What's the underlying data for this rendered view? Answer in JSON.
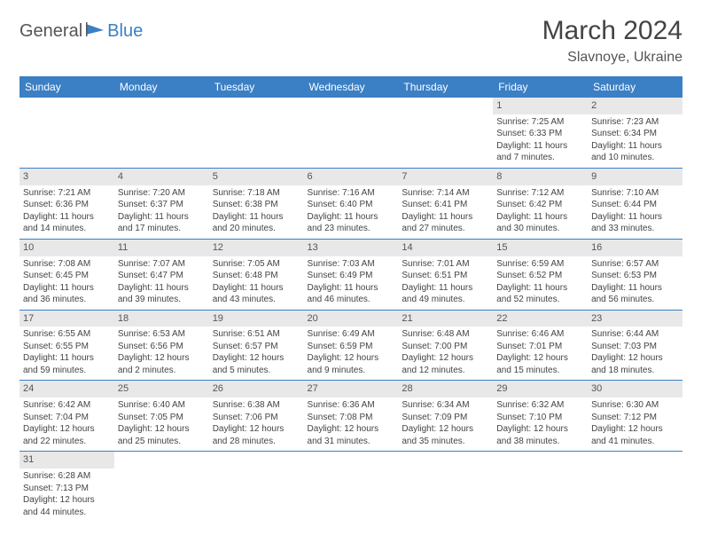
{
  "logo": {
    "part1": "General",
    "part2": "Blue"
  },
  "title": "March 2024",
  "location": "Slavnoye, Ukraine",
  "colors": {
    "header_bg": "#3b7fc4",
    "header_text": "#ffffff",
    "daynum_bg": "#e8e8e8",
    "border": "#3b7fc4",
    "logo_blue": "#3b7fc4"
  },
  "day_headers": [
    "Sunday",
    "Monday",
    "Tuesday",
    "Wednesday",
    "Thursday",
    "Friday",
    "Saturday"
  ],
  "weeks": [
    [
      {
        "n": "",
        "sr": "",
        "ss": "",
        "d1": "",
        "d2": ""
      },
      {
        "n": "",
        "sr": "",
        "ss": "",
        "d1": "",
        "d2": ""
      },
      {
        "n": "",
        "sr": "",
        "ss": "",
        "d1": "",
        "d2": ""
      },
      {
        "n": "",
        "sr": "",
        "ss": "",
        "d1": "",
        "d2": ""
      },
      {
        "n": "",
        "sr": "",
        "ss": "",
        "d1": "",
        "d2": ""
      },
      {
        "n": "1",
        "sr": "Sunrise: 7:25 AM",
        "ss": "Sunset: 6:33 PM",
        "d1": "Daylight: 11 hours",
        "d2": "and 7 minutes."
      },
      {
        "n": "2",
        "sr": "Sunrise: 7:23 AM",
        "ss": "Sunset: 6:34 PM",
        "d1": "Daylight: 11 hours",
        "d2": "and 10 minutes."
      }
    ],
    [
      {
        "n": "3",
        "sr": "Sunrise: 7:21 AM",
        "ss": "Sunset: 6:36 PM",
        "d1": "Daylight: 11 hours",
        "d2": "and 14 minutes."
      },
      {
        "n": "4",
        "sr": "Sunrise: 7:20 AM",
        "ss": "Sunset: 6:37 PM",
        "d1": "Daylight: 11 hours",
        "d2": "and 17 minutes."
      },
      {
        "n": "5",
        "sr": "Sunrise: 7:18 AM",
        "ss": "Sunset: 6:38 PM",
        "d1": "Daylight: 11 hours",
        "d2": "and 20 minutes."
      },
      {
        "n": "6",
        "sr": "Sunrise: 7:16 AM",
        "ss": "Sunset: 6:40 PM",
        "d1": "Daylight: 11 hours",
        "d2": "and 23 minutes."
      },
      {
        "n": "7",
        "sr": "Sunrise: 7:14 AM",
        "ss": "Sunset: 6:41 PM",
        "d1": "Daylight: 11 hours",
        "d2": "and 27 minutes."
      },
      {
        "n": "8",
        "sr": "Sunrise: 7:12 AM",
        "ss": "Sunset: 6:42 PM",
        "d1": "Daylight: 11 hours",
        "d2": "and 30 minutes."
      },
      {
        "n": "9",
        "sr": "Sunrise: 7:10 AM",
        "ss": "Sunset: 6:44 PM",
        "d1": "Daylight: 11 hours",
        "d2": "and 33 minutes."
      }
    ],
    [
      {
        "n": "10",
        "sr": "Sunrise: 7:08 AM",
        "ss": "Sunset: 6:45 PM",
        "d1": "Daylight: 11 hours",
        "d2": "and 36 minutes."
      },
      {
        "n": "11",
        "sr": "Sunrise: 7:07 AM",
        "ss": "Sunset: 6:47 PM",
        "d1": "Daylight: 11 hours",
        "d2": "and 39 minutes."
      },
      {
        "n": "12",
        "sr": "Sunrise: 7:05 AM",
        "ss": "Sunset: 6:48 PM",
        "d1": "Daylight: 11 hours",
        "d2": "and 43 minutes."
      },
      {
        "n": "13",
        "sr": "Sunrise: 7:03 AM",
        "ss": "Sunset: 6:49 PM",
        "d1": "Daylight: 11 hours",
        "d2": "and 46 minutes."
      },
      {
        "n": "14",
        "sr": "Sunrise: 7:01 AM",
        "ss": "Sunset: 6:51 PM",
        "d1": "Daylight: 11 hours",
        "d2": "and 49 minutes."
      },
      {
        "n": "15",
        "sr": "Sunrise: 6:59 AM",
        "ss": "Sunset: 6:52 PM",
        "d1": "Daylight: 11 hours",
        "d2": "and 52 minutes."
      },
      {
        "n": "16",
        "sr": "Sunrise: 6:57 AM",
        "ss": "Sunset: 6:53 PM",
        "d1": "Daylight: 11 hours",
        "d2": "and 56 minutes."
      }
    ],
    [
      {
        "n": "17",
        "sr": "Sunrise: 6:55 AM",
        "ss": "Sunset: 6:55 PM",
        "d1": "Daylight: 11 hours",
        "d2": "and 59 minutes."
      },
      {
        "n": "18",
        "sr": "Sunrise: 6:53 AM",
        "ss": "Sunset: 6:56 PM",
        "d1": "Daylight: 12 hours",
        "d2": "and 2 minutes."
      },
      {
        "n": "19",
        "sr": "Sunrise: 6:51 AM",
        "ss": "Sunset: 6:57 PM",
        "d1": "Daylight: 12 hours",
        "d2": "and 5 minutes."
      },
      {
        "n": "20",
        "sr": "Sunrise: 6:49 AM",
        "ss": "Sunset: 6:59 PM",
        "d1": "Daylight: 12 hours",
        "d2": "and 9 minutes."
      },
      {
        "n": "21",
        "sr": "Sunrise: 6:48 AM",
        "ss": "Sunset: 7:00 PM",
        "d1": "Daylight: 12 hours",
        "d2": "and 12 minutes."
      },
      {
        "n": "22",
        "sr": "Sunrise: 6:46 AM",
        "ss": "Sunset: 7:01 PM",
        "d1": "Daylight: 12 hours",
        "d2": "and 15 minutes."
      },
      {
        "n": "23",
        "sr": "Sunrise: 6:44 AM",
        "ss": "Sunset: 7:03 PM",
        "d1": "Daylight: 12 hours",
        "d2": "and 18 minutes."
      }
    ],
    [
      {
        "n": "24",
        "sr": "Sunrise: 6:42 AM",
        "ss": "Sunset: 7:04 PM",
        "d1": "Daylight: 12 hours",
        "d2": "and 22 minutes."
      },
      {
        "n": "25",
        "sr": "Sunrise: 6:40 AM",
        "ss": "Sunset: 7:05 PM",
        "d1": "Daylight: 12 hours",
        "d2": "and 25 minutes."
      },
      {
        "n": "26",
        "sr": "Sunrise: 6:38 AM",
        "ss": "Sunset: 7:06 PM",
        "d1": "Daylight: 12 hours",
        "d2": "and 28 minutes."
      },
      {
        "n": "27",
        "sr": "Sunrise: 6:36 AM",
        "ss": "Sunset: 7:08 PM",
        "d1": "Daylight: 12 hours",
        "d2": "and 31 minutes."
      },
      {
        "n": "28",
        "sr": "Sunrise: 6:34 AM",
        "ss": "Sunset: 7:09 PM",
        "d1": "Daylight: 12 hours",
        "d2": "and 35 minutes."
      },
      {
        "n": "29",
        "sr": "Sunrise: 6:32 AM",
        "ss": "Sunset: 7:10 PM",
        "d1": "Daylight: 12 hours",
        "d2": "and 38 minutes."
      },
      {
        "n": "30",
        "sr": "Sunrise: 6:30 AM",
        "ss": "Sunset: 7:12 PM",
        "d1": "Daylight: 12 hours",
        "d2": "and 41 minutes."
      }
    ],
    [
      {
        "n": "31",
        "sr": "Sunrise: 6:28 AM",
        "ss": "Sunset: 7:13 PM",
        "d1": "Daylight: 12 hours",
        "d2": "and 44 minutes."
      },
      {
        "n": "",
        "sr": "",
        "ss": "",
        "d1": "",
        "d2": ""
      },
      {
        "n": "",
        "sr": "",
        "ss": "",
        "d1": "",
        "d2": ""
      },
      {
        "n": "",
        "sr": "",
        "ss": "",
        "d1": "",
        "d2": ""
      },
      {
        "n": "",
        "sr": "",
        "ss": "",
        "d1": "",
        "d2": ""
      },
      {
        "n": "",
        "sr": "",
        "ss": "",
        "d1": "",
        "d2": ""
      },
      {
        "n": "",
        "sr": "",
        "ss": "",
        "d1": "",
        "d2": ""
      }
    ]
  ]
}
